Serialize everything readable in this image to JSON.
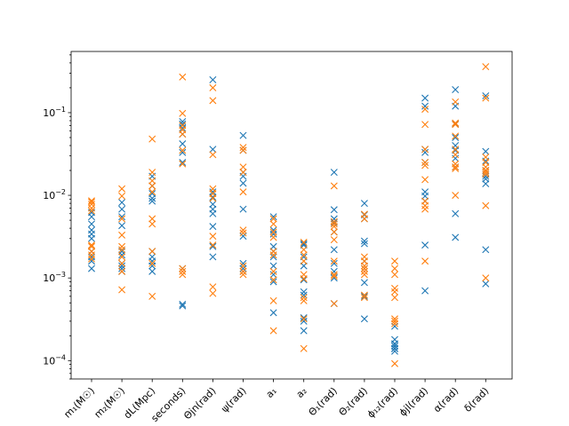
{
  "chart_data": {
    "type": "scatter",
    "title": "",
    "xlabel": "",
    "ylabel": "",
    "yscale": "log",
    "ylim": [
      6e-05,
      0.55
    ],
    "yticks": [
      {
        "value": 0.0001,
        "base": "10",
        "exp": "−4"
      },
      {
        "value": 0.001,
        "base": "10",
        "exp": "−3"
      },
      {
        "value": 0.01,
        "base": "10",
        "exp": "−2"
      },
      {
        "value": 0.1,
        "base": "10",
        "exp": "−1"
      }
    ],
    "grid": false,
    "legend": "none",
    "categories": [
      "m₁(M☉)",
      "m₂(M☉)",
      "dL(Mpc)",
      "seconds)",
      "Θjn(rad)",
      "ψ(rad)",
      "a₁",
      "a₂",
      "Θ₁(rad)",
      "Θ₂(rad)",
      "ϕ₁₂(rad)",
      "ϕjl(rad)",
      "α(rad)",
      "δ(rad)"
    ],
    "series": [
      {
        "color": "#1f77b4",
        "marker": "x",
        "values": [
          [
            0.0062,
            0.0055,
            0.0045,
            0.0038,
            0.0034,
            0.003,
            0.0021,
            0.0018,
            0.0016,
            0.0013
          ],
          [
            0.0082,
            0.0068,
            0.0055,
            0.0043,
            0.0021,
            0.0019,
            0.0015,
            0.0014,
            0.0013,
            0.0012
          ],
          [
            0.017,
            0.013,
            0.0105,
            0.0092,
            0.0085,
            0.0021,
            0.0018,
            0.0016,
            0.0014,
            0.0012
          ],
          [
            0.078,
            0.073,
            0.065,
            0.055,
            0.042,
            0.033,
            0.025,
            0.00048,
            0.00046,
            0.0013
          ],
          [
            0.25,
            0.036,
            0.011,
            0.0095,
            0.0078,
            0.0068,
            0.006,
            0.0042,
            0.0024,
            0.0018
          ],
          [
            0.053,
            0.035,
            0.019,
            0.017,
            0.014,
            0.0068,
            0.0032,
            0.0015,
            0.0013,
            0.0012
          ],
          [
            0.0055,
            0.0038,
            0.0034,
            0.0024,
            0.0021,
            0.0018,
            0.0014,
            0.0011,
            0.0009,
            0.00038
          ],
          [
            0.0026,
            0.0018,
            0.0014,
            0.00095,
            0.00068,
            0.00062,
            0.00033,
            0.0003,
            0.00023,
            0.0025
          ],
          [
            0.019,
            0.0067,
            0.0052,
            0.0036,
            0.0022,
            0.0015,
            0.0012,
            0.001,
            0.00049,
            0.0047
          ],
          [
            0.008,
            0.0058,
            0.0028,
            0.0026,
            0.0016,
            0.0013,
            0.00088,
            0.0006,
            0.00032,
            0.0052
          ],
          [
            0.00026,
            0.00018,
            0.00016,
            0.00015,
            0.00014,
            0.00013,
            0.00014,
            0.00016,
            0.00015,
            0.00014
          ],
          [
            0.15,
            0.036,
            0.033,
            0.025,
            0.011,
            0.0098,
            0.0085,
            0.0025,
            0.0007,
            0.12
          ],
          [
            0.19,
            0.12,
            0.073,
            0.05,
            0.04,
            0.035,
            0.028,
            0.022,
            0.006,
            0.0031
          ],
          [
            0.16,
            0.034,
            0.026,
            0.02,
            0.018,
            0.017,
            0.0158,
            0.0138,
            0.0022,
            0.00085
          ]
        ]
      },
      {
        "color": "#ff7f0e",
        "marker": "x",
        "values": [
          [
            0.0086,
            0.0083,
            0.0078,
            0.007,
            0.0065,
            0.0025,
            0.0024,
            0.0021,
            0.0019,
            0.0017
          ],
          [
            0.012,
            0.0098,
            0.0052,
            0.0033,
            0.0024,
            0.0022,
            0.0018,
            0.0015,
            0.0012,
            0.00072
          ],
          [
            0.048,
            0.019,
            0.015,
            0.013,
            0.011,
            0.0052,
            0.0045,
            0.0021,
            0.0015,
            0.0006
          ],
          [
            0.27,
            0.098,
            0.07,
            0.062,
            0.055,
            0.035,
            0.024,
            0.0013,
            0.0011,
            0.0012
          ],
          [
            0.2,
            0.14,
            0.031,
            0.012,
            0.0092,
            0.0032,
            0.0025,
            0.00078,
            0.00065,
            0.0105
          ],
          [
            0.038,
            0.035,
            0.022,
            0.019,
            0.011,
            0.0038,
            0.0035,
            0.0014,
            0.0012,
            0.0011
          ],
          [
            0.0052,
            0.0045,
            0.0036,
            0.0031,
            0.0021,
            0.0019,
            0.0012,
            0.00095,
            0.00053,
            0.00023
          ],
          [
            0.0027,
            0.0022,
            0.0016,
            0.0011,
            0.00098,
            0.00058,
            0.00053,
            0.00032,
            0.00014,
            0.0019
          ],
          [
            0.013,
            0.0048,
            0.0045,
            0.0036,
            0.0029,
            0.0016,
            0.0011,
            0.00105,
            0.00049,
            0.0042
          ],
          [
            0.0059,
            0.0052,
            0.0018,
            0.0016,
            0.0014,
            0.0011,
            0.00062,
            0.00058,
            0.0012,
            0.0013
          ],
          [
            0.0016,
            0.0013,
            0.00075,
            0.00068,
            0.00058,
            0.00032,
            0.0003,
            0.00028,
            9.2e-05,
            0.0011
          ],
          [
            0.11,
            0.072,
            0.025,
            0.023,
            0.0155,
            0.0085,
            0.0075,
            0.0068,
            0.0016,
            0.036
          ],
          [
            0.135,
            0.072,
            0.036,
            0.031,
            0.024,
            0.022,
            0.021,
            0.01,
            0.075,
            0.052
          ],
          [
            0.36,
            0.15,
            0.029,
            0.025,
            0.022,
            0.02,
            0.018,
            0.0075,
            0.001,
            0.019
          ]
        ]
      }
    ]
  }
}
